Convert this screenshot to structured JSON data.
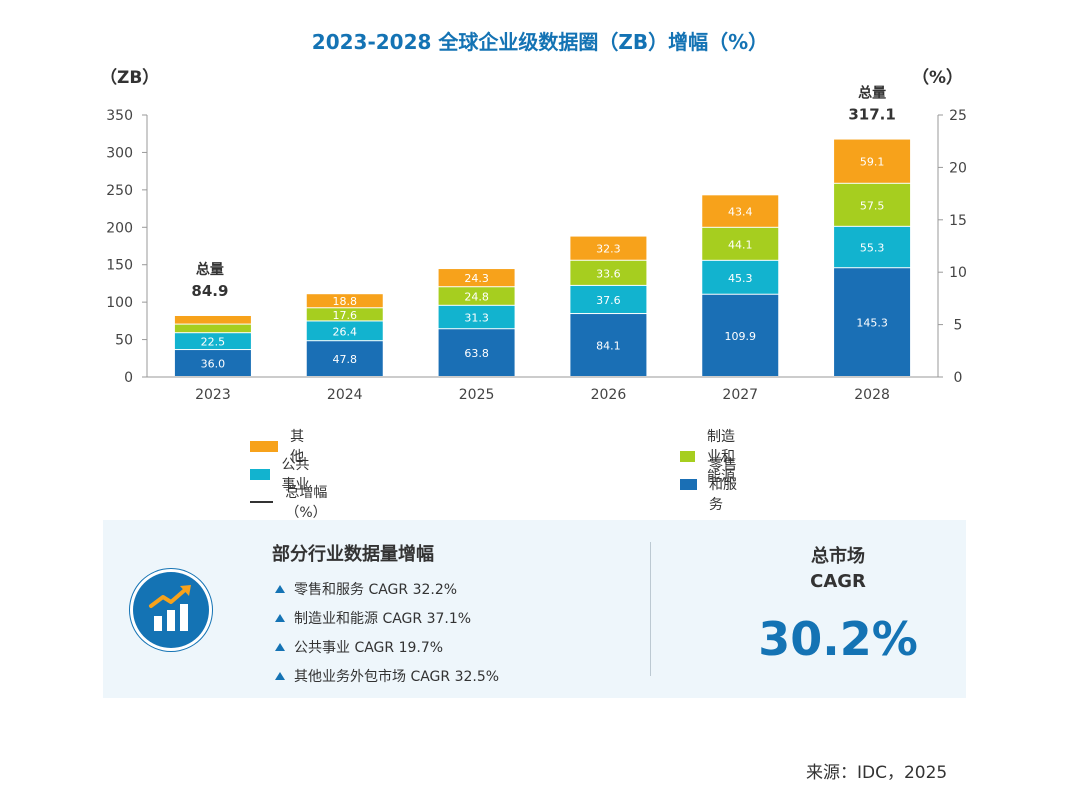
{
  "title": "2023-2028 全球企业级数据圈（ZB）增幅（%）",
  "left_unit": "（ZB）",
  "right_unit": "（%）",
  "total_word": "总量",
  "chart_data": {
    "type": "bar",
    "stacked": true,
    "title": "2023-2028 全球企业级数据圈（ZB）增幅（%）",
    "categories": [
      "2023",
      "2024",
      "2025",
      "2026",
      "2027",
      "2028"
    ],
    "series": [
      {
        "name": "零售和服务",
        "color": "#1a6fb5",
        "values": [
          36.0,
          47.8,
          63.8,
          84.1,
          109.9,
          145.3
        ]
      },
      {
        "name": "公共事业",
        "color": "#12b3cf",
        "values": [
          22.5,
          26.4,
          31.3,
          37.6,
          45.3,
          55.3
        ]
      },
      {
        "name": "制造业和能源",
        "color": "#a6ce1f",
        "values": [
          null,
          17.6,
          24.8,
          33.6,
          44.1,
          57.5
        ]
      },
      {
        "name": "其他",
        "color": "#f7a21b",
        "values": [
          null,
          18.8,
          24.3,
          32.3,
          43.4,
          59.1
        ]
      }
    ],
    "totals": [
      {
        "category": "2023",
        "value": "84.9"
      },
      {
        "category": "2028",
        "value": "317.1"
      }
    ],
    "y_ticks": [
      "0",
      "50",
      "100",
      "150",
      "200",
      "250",
      "300",
      "350"
    ],
    "ylim": [
      0,
      350
    ],
    "y2_ticks": [
      "0",
      "5",
      "10",
      "15",
      "20",
      "25"
    ],
    "y2lim": [
      0,
      25
    ],
    "grid": false,
    "legend": "bottom"
  },
  "legend": [
    {
      "label": "其他",
      "kind": "box",
      "color": "#f7a21b"
    },
    {
      "label": "制造业和能源",
      "kind": "box",
      "color": "#a6ce1f"
    },
    {
      "label": "公共事业",
      "kind": "box",
      "color": "#12b3cf"
    },
    {
      "label": "零售和服务",
      "kind": "box",
      "color": "#1a6fb5"
    },
    {
      "label": "总增幅（%）",
      "kind": "line",
      "color": "#333333"
    }
  ],
  "panel": {
    "heading": "部分行业数据量增幅",
    "items": [
      "零售和服务 CAGR 32.2%",
      "制造业和能源 CAGR 37.1%",
      "公共事业 CAGR 19.7%",
      "其他业务外包市场 CAGR 32.5%"
    ],
    "icon": "growth-chart-icon",
    "cagr_title_line1": "总市场",
    "cagr_title_line2": "CAGR",
    "cagr_value": "30.2%"
  },
  "source": "来源：IDC，2025"
}
